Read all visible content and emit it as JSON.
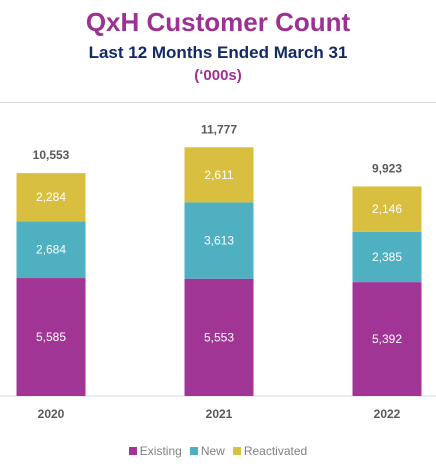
{
  "header": {
    "title": "QxH Customer Count",
    "subtitle": "Last 12 Months Ended March 31",
    "units": "(‘000s)"
  },
  "colors": {
    "existing": "#a03595",
    "new": "#4eb0c1",
    "reactivated": "#d8bf40",
    "title": "#9b3293",
    "subtitle": "#122a66",
    "axis": "#d9d9d9"
  },
  "legend": [
    {
      "label": "Existing",
      "color": "#a03595"
    },
    {
      "label": "New",
      "color": "#4eb0c1"
    },
    {
      "label": "Reactivated",
      "color": "#d8bf40"
    }
  ],
  "chart_data": {
    "type": "bar",
    "stacked": true,
    "title": "QxH Customer Count",
    "subtitle": "Last 12 Months Ended March 31",
    "units": "(‘000s)",
    "categories": [
      "2020",
      "2021",
      "2022"
    ],
    "series": [
      {
        "name": "Existing",
        "values": [
          5585,
          5553,
          5392
        ]
      },
      {
        "name": "New",
        "values": [
          2684,
          3613,
          2385
        ]
      },
      {
        "name": "Reactivated",
        "values": [
          2284,
          2611,
          2146
        ]
      }
    ],
    "totals": [
      10553,
      11777,
      9923
    ],
    "value_labels": {
      "Existing": [
        "5,585",
        "5,553",
        "5,392"
      ],
      "New": [
        "2,684",
        "3,613",
        "2,385"
      ],
      "Reactivated": [
        "2,284",
        "2,611",
        "2,146"
      ],
      "totals": [
        "10,553",
        "11,777",
        "9,923"
      ]
    },
    "ylim": [
      0,
      13000
    ],
    "grid": false,
    "legend_position": "bottom"
  }
}
